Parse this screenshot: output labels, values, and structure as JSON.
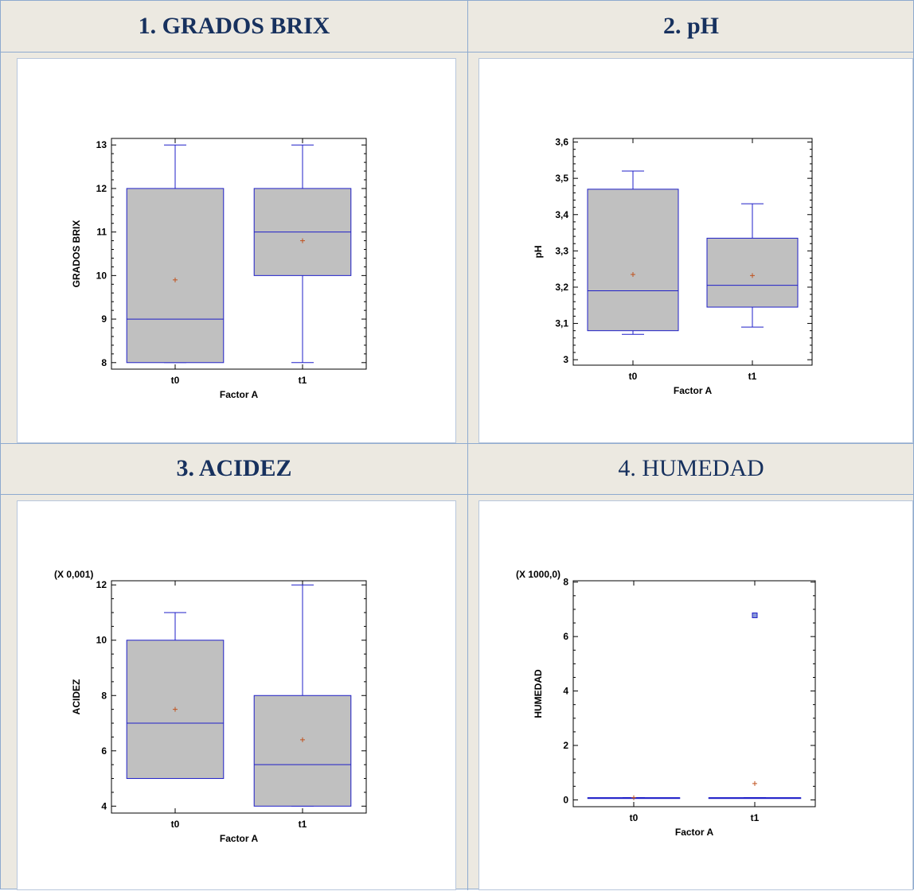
{
  "headers": [
    {
      "text": "1. GRADOS BRIX",
      "bold": true
    },
    {
      "text": "2. pH",
      "bold": true
    },
    {
      "text": "3. ACIDEZ",
      "bold": true
    },
    {
      "text": "4. HUMEDAD",
      "bold": false
    }
  ],
  "colors": {
    "box_fill": "#c0c0c0",
    "box_stroke": "#1f1fc8",
    "mean_marker": "#c0521e",
    "header_text": "#17315e",
    "grid_border": "#8eaacf"
  },
  "chart_data": [
    {
      "type": "box",
      "xlabel": "Factor A",
      "ylabel": "GRADOS BRIX",
      "scale_note": "",
      "ylim": [
        7.85,
        13.15
      ],
      "yticks": [
        8,
        9,
        10,
        11,
        12,
        13
      ],
      "ytick_labels": [
        "8",
        "9",
        "10",
        "11",
        "12",
        "13"
      ],
      "minor_per_major": 5,
      "categories": [
        "t0",
        "t1"
      ],
      "boxes": [
        {
          "min": 8,
          "q1": 8,
          "median": 9,
          "q3": 12,
          "max": 13,
          "mean": 9.9,
          "outliers": []
        },
        {
          "min": 8,
          "q1": 10,
          "median": 11,
          "q3": 12,
          "max": 13,
          "mean": 10.8,
          "outliers": []
        }
      ]
    },
    {
      "type": "box",
      "xlabel": "Factor A",
      "ylabel": "pH",
      "scale_note": "",
      "ylim": [
        2.985,
        3.61
      ],
      "yticks": [
        3.0,
        3.1,
        3.2,
        3.3,
        3.4,
        3.5,
        3.6
      ],
      "ytick_labels": [
        "3",
        "3,1",
        "3,2",
        "3,3",
        "3,4",
        "3,5",
        "3,6"
      ],
      "minor_per_major": 5,
      "categories": [
        "t0",
        "t1"
      ],
      "boxes": [
        {
          "min": 3.07,
          "q1": 3.08,
          "median": 3.19,
          "q3": 3.47,
          "max": 3.52,
          "mean": 3.235,
          "outliers": []
        },
        {
          "min": 3.09,
          "q1": 3.145,
          "median": 3.205,
          "q3": 3.335,
          "max": 3.43,
          "mean": 3.232,
          "outliers": []
        }
      ]
    },
    {
      "type": "box",
      "xlabel": "Factor A",
      "ylabel": "ACIDEZ",
      "scale_note": "(X 0,001)",
      "ylim": [
        3.75,
        12.15
      ],
      "yticks": [
        4,
        6,
        8,
        10,
        12
      ],
      "ytick_labels": [
        "4",
        "6",
        "8",
        "10",
        "12"
      ],
      "minor_per_major": 4,
      "categories": [
        "t0",
        "t1"
      ],
      "boxes": [
        {
          "min": 5,
          "q1": 5,
          "median": 7,
          "q3": 10,
          "max": 11,
          "mean": 7.5,
          "outliers": []
        },
        {
          "min": 4,
          "q1": 4,
          "median": 5.5,
          "q3": 8,
          "max": 12,
          "mean": 6.4,
          "outliers": []
        }
      ]
    },
    {
      "type": "box",
      "xlabel": "Factor A",
      "ylabel": "HUMEDAD",
      "scale_note": "(X 1000,0)",
      "ylim": [
        -0.25,
        8.05
      ],
      "yticks": [
        0,
        2,
        4,
        6,
        8
      ],
      "ytick_labels": [
        "0",
        "2",
        "4",
        "6",
        "8"
      ],
      "minor_per_major": 4,
      "categories": [
        "t0",
        "t1"
      ],
      "boxes": [
        {
          "min": 0.08,
          "q1": 0.08,
          "median": 0.08,
          "q3": 0.08,
          "max": 0.08,
          "mean": 0.08,
          "outliers": []
        },
        {
          "min": 0.08,
          "q1": 0.08,
          "median": 0.08,
          "q3": 0.08,
          "max": 0.08,
          "mean": 0.6,
          "outliers": [
            6.78
          ]
        }
      ]
    }
  ]
}
